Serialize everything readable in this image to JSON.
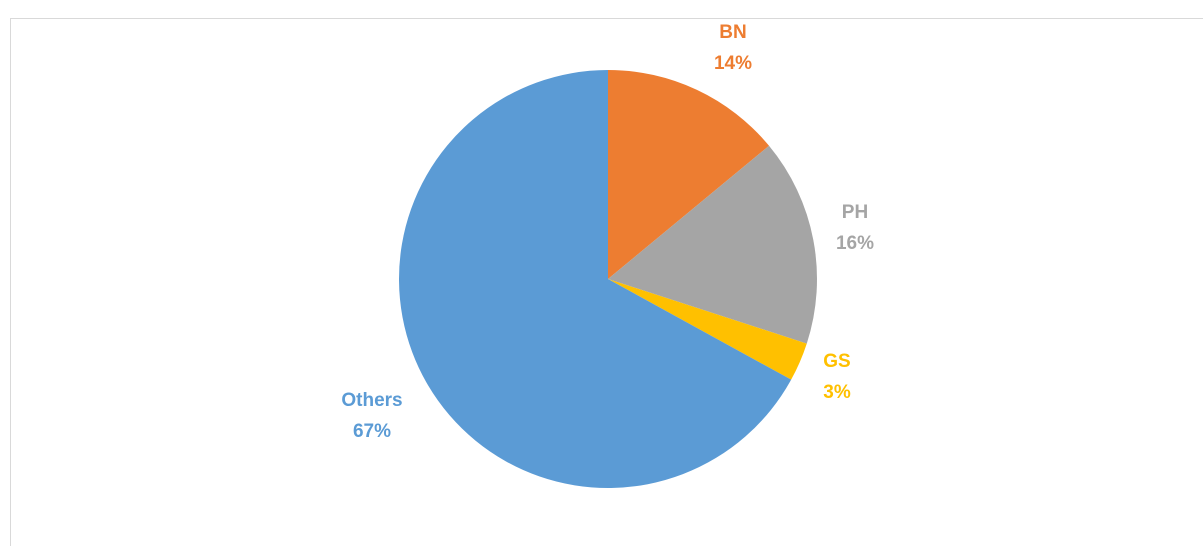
{
  "chart_data": {
    "type": "pie",
    "categories": [
      "BN",
      "PH",
      "GS",
      "Others"
    ],
    "values": [
      14,
      16,
      3,
      67
    ],
    "value_labels": [
      "14%",
      "16%",
      "3%",
      "67%"
    ],
    "colors": [
      "#ED7D31",
      "#A5A5A5",
      "#FFC000",
      "#5B9BD5"
    ]
  }
}
